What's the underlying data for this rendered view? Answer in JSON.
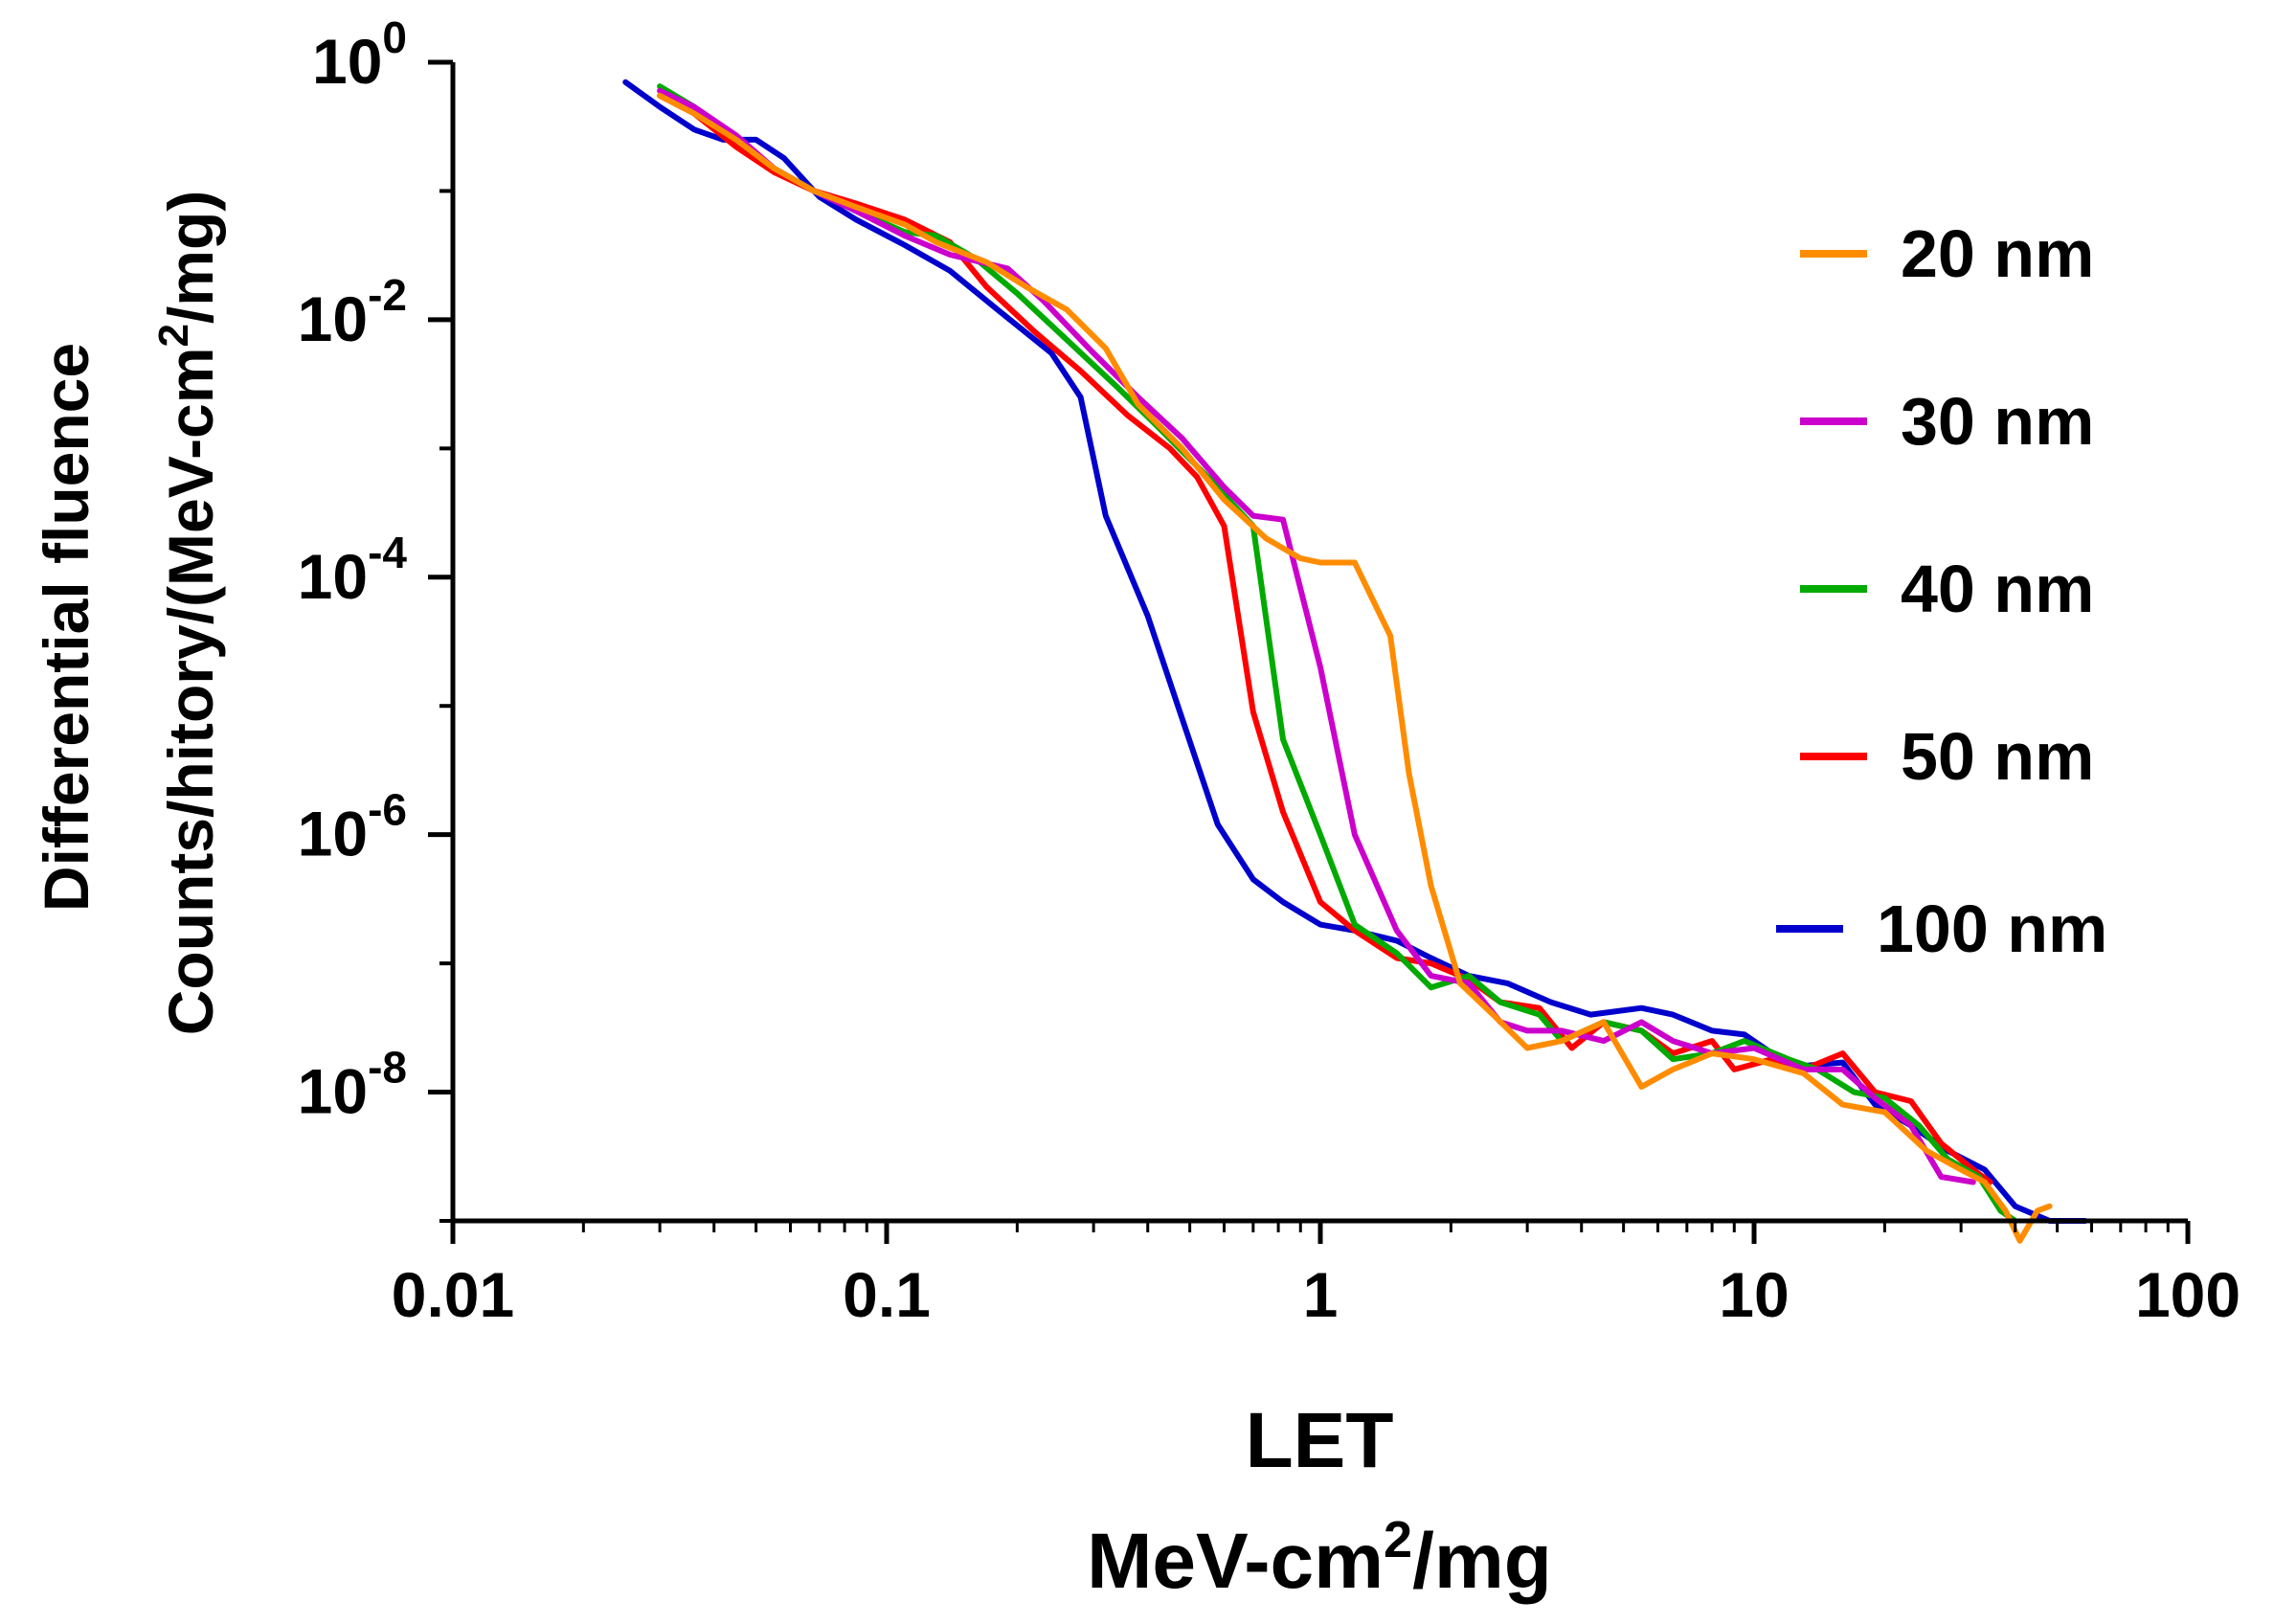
{
  "chart_data": {
    "type": "line",
    "title": "",
    "xlabel_line1": "LET",
    "xlabel_line2_main": "MeV-cm",
    "xlabel_line2_sup": "2",
    "xlabel_line2_tail": "/mg",
    "ylabel_line1": "Differential fluence",
    "ylabel_line2_main": "Counts/hitory/(MeV-cm",
    "ylabel_line2_sup": "2",
    "ylabel_line2_tail": "/mg)",
    "x_scale": "log",
    "y_scale": "log",
    "xlim": [
      0.01,
      100
    ],
    "ylim_exponents": [
      -9,
      0
    ],
    "x_ticks": [
      {
        "value": 0.01,
        "label": "0.01"
      },
      {
        "value": 0.1,
        "label": "0.1"
      },
      {
        "value": 1,
        "label": "1"
      },
      {
        "value": 10,
        "label": "10"
      },
      {
        "value": 100,
        "label": "100"
      }
    ],
    "y_ticks": [
      {
        "exp": 0,
        "base": "10",
        "sup": "0"
      },
      {
        "exp": -2,
        "base": "10",
        "sup": "-2"
      },
      {
        "exp": -4,
        "base": "10",
        "sup": "-4"
      },
      {
        "exp": -6,
        "base": "10",
        "sup": "-6"
      },
      {
        "exp": -8,
        "base": "10",
        "sup": "-8"
      }
    ],
    "legend_position": "top-right",
    "series": [
      {
        "name": "20 nm",
        "color": "#FF8C00",
        "points": [
          [
            0.03,
            0.55
          ],
          [
            0.036,
            0.4
          ],
          [
            0.045,
            0.25
          ],
          [
            0.055,
            0.15
          ],
          [
            0.068,
            0.1
          ],
          [
            0.085,
            0.075
          ],
          [
            0.11,
            0.055
          ],
          [
            0.13,
            0.04
          ],
          [
            0.17,
            0.028
          ],
          [
            0.21,
            0.018
          ],
          [
            0.26,
            0.012
          ],
          [
            0.32,
            0.006
          ],
          [
            0.38,
            0.0022
          ],
          [
            0.48,
            0.001
          ],
          [
            0.6,
            0.0004
          ],
          [
            0.75,
            0.0002
          ],
          [
            0.9,
            0.00014
          ],
          [
            1.0,
            0.00013
          ],
          [
            1.2,
            0.00013
          ],
          [
            1.45,
            3.5e-05
          ],
          [
            1.6,
            3e-06
          ],
          [
            1.8,
            4e-07
          ],
          [
            2.1,
            7e-08
          ],
          [
            2.5,
            4e-08
          ],
          [
            3.0,
            2.2e-08
          ],
          [
            3.6,
            2.5e-08
          ],
          [
            4.5,
            3.5e-08
          ],
          [
            5.5,
            1.1e-08
          ],
          [
            6.5,
            1.5e-08
          ],
          [
            8,
            2e-08
          ],
          [
            10,
            1.8e-08
          ],
          [
            13,
            1.4e-08
          ],
          [
            16,
            8e-09
          ],
          [
            20,
            7e-09
          ],
          [
            25,
            3.5e-09
          ],
          [
            30,
            2.5e-09
          ],
          [
            34,
            2e-09
          ],
          [
            38,
            1.2e-09
          ],
          [
            41,
            7e-10
          ],
          [
            45,
            1.2e-09
          ],
          [
            48,
            1.3e-09
          ]
        ]
      },
      {
        "name": "30 nm",
        "color": "#CC00CC",
        "points": [
          [
            0.03,
            0.6
          ],
          [
            0.036,
            0.45
          ],
          [
            0.045,
            0.27
          ],
          [
            0.055,
            0.15
          ],
          [
            0.068,
            0.1
          ],
          [
            0.085,
            0.07
          ],
          [
            0.11,
            0.045
          ],
          [
            0.14,
            0.032
          ],
          [
            0.19,
            0.025
          ],
          [
            0.23,
            0.014
          ],
          [
            0.3,
            0.0055
          ],
          [
            0.38,
            0.0025
          ],
          [
            0.48,
            0.0012
          ],
          [
            0.6,
            0.0005
          ],
          [
            0.7,
            0.0003
          ],
          [
            0.82,
            0.00028
          ],
          [
            1.0,
            2e-05
          ],
          [
            1.2,
            1e-06
          ],
          [
            1.5,
            1.8e-07
          ],
          [
            1.8,
            8e-08
          ],
          [
            2.2,
            7e-08
          ],
          [
            2.6,
            3.5e-08
          ],
          [
            3.0,
            3e-08
          ],
          [
            3.6,
            3e-08
          ],
          [
            4.5,
            2.5e-08
          ],
          [
            5.5,
            3.5e-08
          ],
          [
            6.5,
            2.5e-08
          ],
          [
            8,
            2e-08
          ],
          [
            10,
            2.2e-08
          ],
          [
            13,
            1.5e-08
          ],
          [
            16,
            1.5e-08
          ],
          [
            19,
            9e-09
          ],
          [
            23,
            5.5e-09
          ],
          [
            27,
            2.2e-09
          ],
          [
            32,
            2e-09
          ]
        ]
      },
      {
        "name": "40 nm",
        "color": "#00AA00",
        "points": [
          [
            0.03,
            0.65
          ],
          [
            0.036,
            0.45
          ],
          [
            0.045,
            0.25
          ],
          [
            0.055,
            0.15
          ],
          [
            0.068,
            0.1
          ],
          [
            0.085,
            0.07
          ],
          [
            0.11,
            0.048
          ],
          [
            0.13,
            0.045
          ],
          [
            0.16,
            0.03
          ],
          [
            0.2,
            0.016
          ],
          [
            0.26,
            0.007
          ],
          [
            0.34,
            0.003
          ],
          [
            0.42,
            0.0015
          ],
          [
            0.55,
            0.0006
          ],
          [
            0.7,
            0.00025
          ],
          [
            0.82,
            5.5e-06
          ],
          [
            1.0,
            1e-06
          ],
          [
            1.2,
            2e-07
          ],
          [
            1.5,
            1.2e-07
          ],
          [
            1.8,
            6.5e-08
          ],
          [
            2.2,
            8e-08
          ],
          [
            2.6,
            5e-08
          ],
          [
            3.2,
            4e-08
          ],
          [
            3.6,
            2.5e-08
          ],
          [
            4.5,
            3.5e-08
          ],
          [
            5.5,
            3e-08
          ],
          [
            6.5,
            1.8e-08
          ],
          [
            8,
            2e-08
          ],
          [
            9.5,
            2.5e-08
          ],
          [
            12,
            1.8e-08
          ],
          [
            14,
            1.5e-08
          ],
          [
            17,
            1e-08
          ],
          [
            20,
            9e-09
          ],
          [
            24,
            5.5e-09
          ],
          [
            28,
            3e-09
          ],
          [
            33,
            2.2e-09
          ],
          [
            37,
            1.2e-09
          ],
          [
            40,
            1e-09
          ]
        ]
      },
      {
        "name": "50 nm",
        "color": "#FF0000",
        "points": [
          [
            0.03,
            0.55
          ],
          [
            0.036,
            0.4
          ],
          [
            0.045,
            0.22
          ],
          [
            0.055,
            0.14
          ],
          [
            0.068,
            0.1
          ],
          [
            0.085,
            0.08
          ],
          [
            0.11,
            0.06
          ],
          [
            0.14,
            0.04
          ],
          [
            0.17,
            0.018
          ],
          [
            0.22,
            0.008
          ],
          [
            0.28,
            0.004
          ],
          [
            0.36,
            0.0018
          ],
          [
            0.45,
            0.001
          ],
          [
            0.52,
            0.0006
          ],
          [
            0.6,
            0.00025
          ],
          [
            0.7,
            9e-06
          ],
          [
            0.82,
            1.5e-06
          ],
          [
            1.0,
            3e-07
          ],
          [
            1.2,
            1.8e-07
          ],
          [
            1.5,
            1.1e-07
          ],
          [
            1.8,
            1e-07
          ],
          [
            2.2,
            7.5e-08
          ],
          [
            2.6,
            5e-08
          ],
          [
            3.2,
            4.5e-08
          ],
          [
            3.8,
            2.2e-08
          ],
          [
            4.5,
            3.5e-08
          ],
          [
            5.5,
            3e-08
          ],
          [
            6.5,
            2e-08
          ],
          [
            8,
            2.5e-08
          ],
          [
            9,
            1.5e-08
          ],
          [
            11,
            1.8e-08
          ],
          [
            13,
            1.5e-08
          ],
          [
            16,
            2e-08
          ],
          [
            19,
            1e-08
          ],
          [
            23,
            8.5e-09
          ],
          [
            27,
            4e-09
          ],
          [
            32,
            2.5e-09
          ],
          [
            35,
            2e-09
          ]
        ]
      },
      {
        "name": "100 nm",
        "color": "#0000CC",
        "points": [
          [
            0.025,
            0.7
          ],
          [
            0.03,
            0.45
          ],
          [
            0.036,
            0.3
          ],
          [
            0.042,
            0.25
          ],
          [
            0.05,
            0.25
          ],
          [
            0.058,
            0.18
          ],
          [
            0.07,
            0.09
          ],
          [
            0.085,
            0.06
          ],
          [
            0.11,
            0.038
          ],
          [
            0.14,
            0.024
          ],
          [
            0.18,
            0.012
          ],
          [
            0.24,
            0.0055
          ],
          [
            0.28,
            0.0025
          ],
          [
            0.32,
            0.0003
          ],
          [
            0.4,
            5e-05
          ],
          [
            0.48,
            8e-06
          ],
          [
            0.58,
            1.2e-06
          ],
          [
            0.7,
            4.5e-07
          ],
          [
            0.82,
            3e-07
          ],
          [
            1.0,
            2e-07
          ],
          [
            1.2,
            1.8e-07
          ],
          [
            1.5,
            1.5e-07
          ],
          [
            1.8,
            1.1e-07
          ],
          [
            2.2,
            8e-08
          ],
          [
            2.7,
            7e-08
          ],
          [
            3.4,
            5e-08
          ],
          [
            4.2,
            4e-08
          ],
          [
            5.5,
            4.5e-08
          ],
          [
            6.5,
            4e-08
          ],
          [
            8,
            3e-08
          ],
          [
            9.5,
            2.8e-08
          ],
          [
            11,
            2e-08
          ],
          [
            13,
            1.6e-08
          ],
          [
            16,
            1.7e-08
          ],
          [
            19,
            8e-09
          ],
          [
            23,
            5.5e-09
          ],
          [
            28,
            3.5e-09
          ],
          [
            34,
            2.5e-09
          ],
          [
            40,
            1.3e-09
          ],
          [
            48,
            1e-09
          ],
          [
            58,
            1e-09
          ]
        ]
      }
    ]
  }
}
